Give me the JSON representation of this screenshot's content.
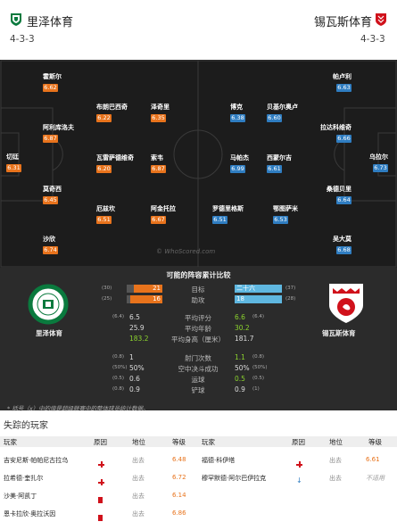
{
  "header": {
    "home_team": "里泽体育",
    "away_team": "锡瓦斯体育",
    "home_formation": "4-3-3",
    "away_formation": "4-3-3"
  },
  "home_players": [
    {
      "name": "霍斯尔",
      "rating": "6.62"
    },
    {
      "name": "阿利库洛夫",
      "rating": "6.87"
    },
    {
      "name": "切廷",
      "rating": "6.31"
    },
    {
      "name": "莫奇西",
      "rating": "6.45"
    },
    {
      "name": "沙欣",
      "rating": "6.74"
    },
    {
      "name": "布朗巴西奇",
      "rating": "6.22"
    },
    {
      "name": "瓦雷萨德维奇",
      "rating": "6.20"
    },
    {
      "name": "厄兹坎",
      "rating": "6.51"
    },
    {
      "name": "泽奇里",
      "rating": "6.35"
    },
    {
      "name": "索韦",
      "rating": "6.87"
    },
    {
      "name": "阿金托拉",
      "rating": "6.67"
    }
  ],
  "away_players": [
    {
      "name": "帕卢利",
      "rating": "6.63"
    },
    {
      "name": "拉达科维奇",
      "rating": "6.66"
    },
    {
      "name": "乌拉尔",
      "rating": "6.73"
    },
    {
      "name": "桑德贝里",
      "rating": "6.64"
    },
    {
      "name": "吴大莫",
      "rating": "6.68"
    },
    {
      "name": "博克",
      "rating": "6.38"
    },
    {
      "name": "马帕杰",
      "rating": "6.99"
    },
    {
      "name": "罗德里格斯",
      "rating": "6.51"
    },
    {
      "name": "贝基尔奥卢",
      "rating": "6.60"
    },
    {
      "name": "西蒙尔吉",
      "rating": "6.61"
    },
    {
      "name": "鄂图萨米",
      "rating": "6.53"
    }
  ],
  "watermark": "© WhoScored.com",
  "comparison": {
    "title": "可能的阵容累计比较",
    "home_team": "里泽体育",
    "away_team": "锡瓦斯体育",
    "rows": [
      {
        "label": "目标",
        "home": "21",
        "home_rank": "(30)",
        "away": "二十六",
        "away_rank": "(37)",
        "home_frac": 0.81,
        "away_frac": 1.0
      },
      {
        "label": "助攻",
        "home": "16",
        "home_rank": "(25)",
        "away": "18",
        "away_rank": "(28)",
        "home_frac": 0.89,
        "away_frac": 1.0
      },
      {
        "label": "平均评分",
        "home": "6.5",
        "home_rank": "(6.4)",
        "away": "6.6",
        "away_rank": "(6.4)"
      },
      {
        "label": "平均年龄",
        "home": "25.9",
        "home_rank": "",
        "away": "30.2",
        "away_rank": ""
      },
      {
        "label": "平均身高（厘米）",
        "home": "183.2",
        "home_rank": "",
        "away": "181.7",
        "away_rank": ""
      },
      {
        "label": "射门次数",
        "home": "1",
        "home_rank": "(0.8)",
        "away": "1.1",
        "away_rank": "(0.8)"
      },
      {
        "label": "空中决斗成功",
        "home": "50%",
        "home_rank": "(50%)",
        "away": "50%",
        "away_rank": "(50%)"
      },
      {
        "label": "运球",
        "home": "0.6",
        "home_rank": "(0.5)",
        "away": "0.5",
        "away_rank": "(0.5)"
      },
      {
        "label": "铲球",
        "home": "0.9",
        "home_rank": "(0.8)",
        "away": "0.9",
        "away_rank": "(1)"
      }
    ],
    "note": "* 括号（x）中的值是超级联赛中的整体球员统计数据。"
  },
  "missing": {
    "title": "失踪的玩家",
    "headers": {
      "player": "玩家",
      "reason": "原因",
      "status": "地位",
      "rating": "等级"
    },
    "home": [
      {
        "name": "吉安尼斯·帕帕尼古拉乌",
        "reason": "injury",
        "status": "出去",
        "rating": "6.48"
      },
      {
        "name": "拉希德·奎扎尔",
        "reason": "injury",
        "status": "出去",
        "rating": "6.72"
      },
      {
        "name": "沙美·阿凯丁",
        "reason": "red-card",
        "status": "出去",
        "rating": "6.14"
      },
      {
        "name": "恩卡拉欣·奥拉沃因",
        "reason": "red-card",
        "status": "出去",
        "rating": "6.86"
      }
    ],
    "away": [
      {
        "name": "福德·科伊塔",
        "reason": "injury",
        "status": "出去",
        "rating": "6.61"
      },
      {
        "name": "穆罕默德·阿尔巴伊拉克",
        "reason": "other",
        "status": "出去",
        "rating": "不适用"
      }
    ]
  }
}
